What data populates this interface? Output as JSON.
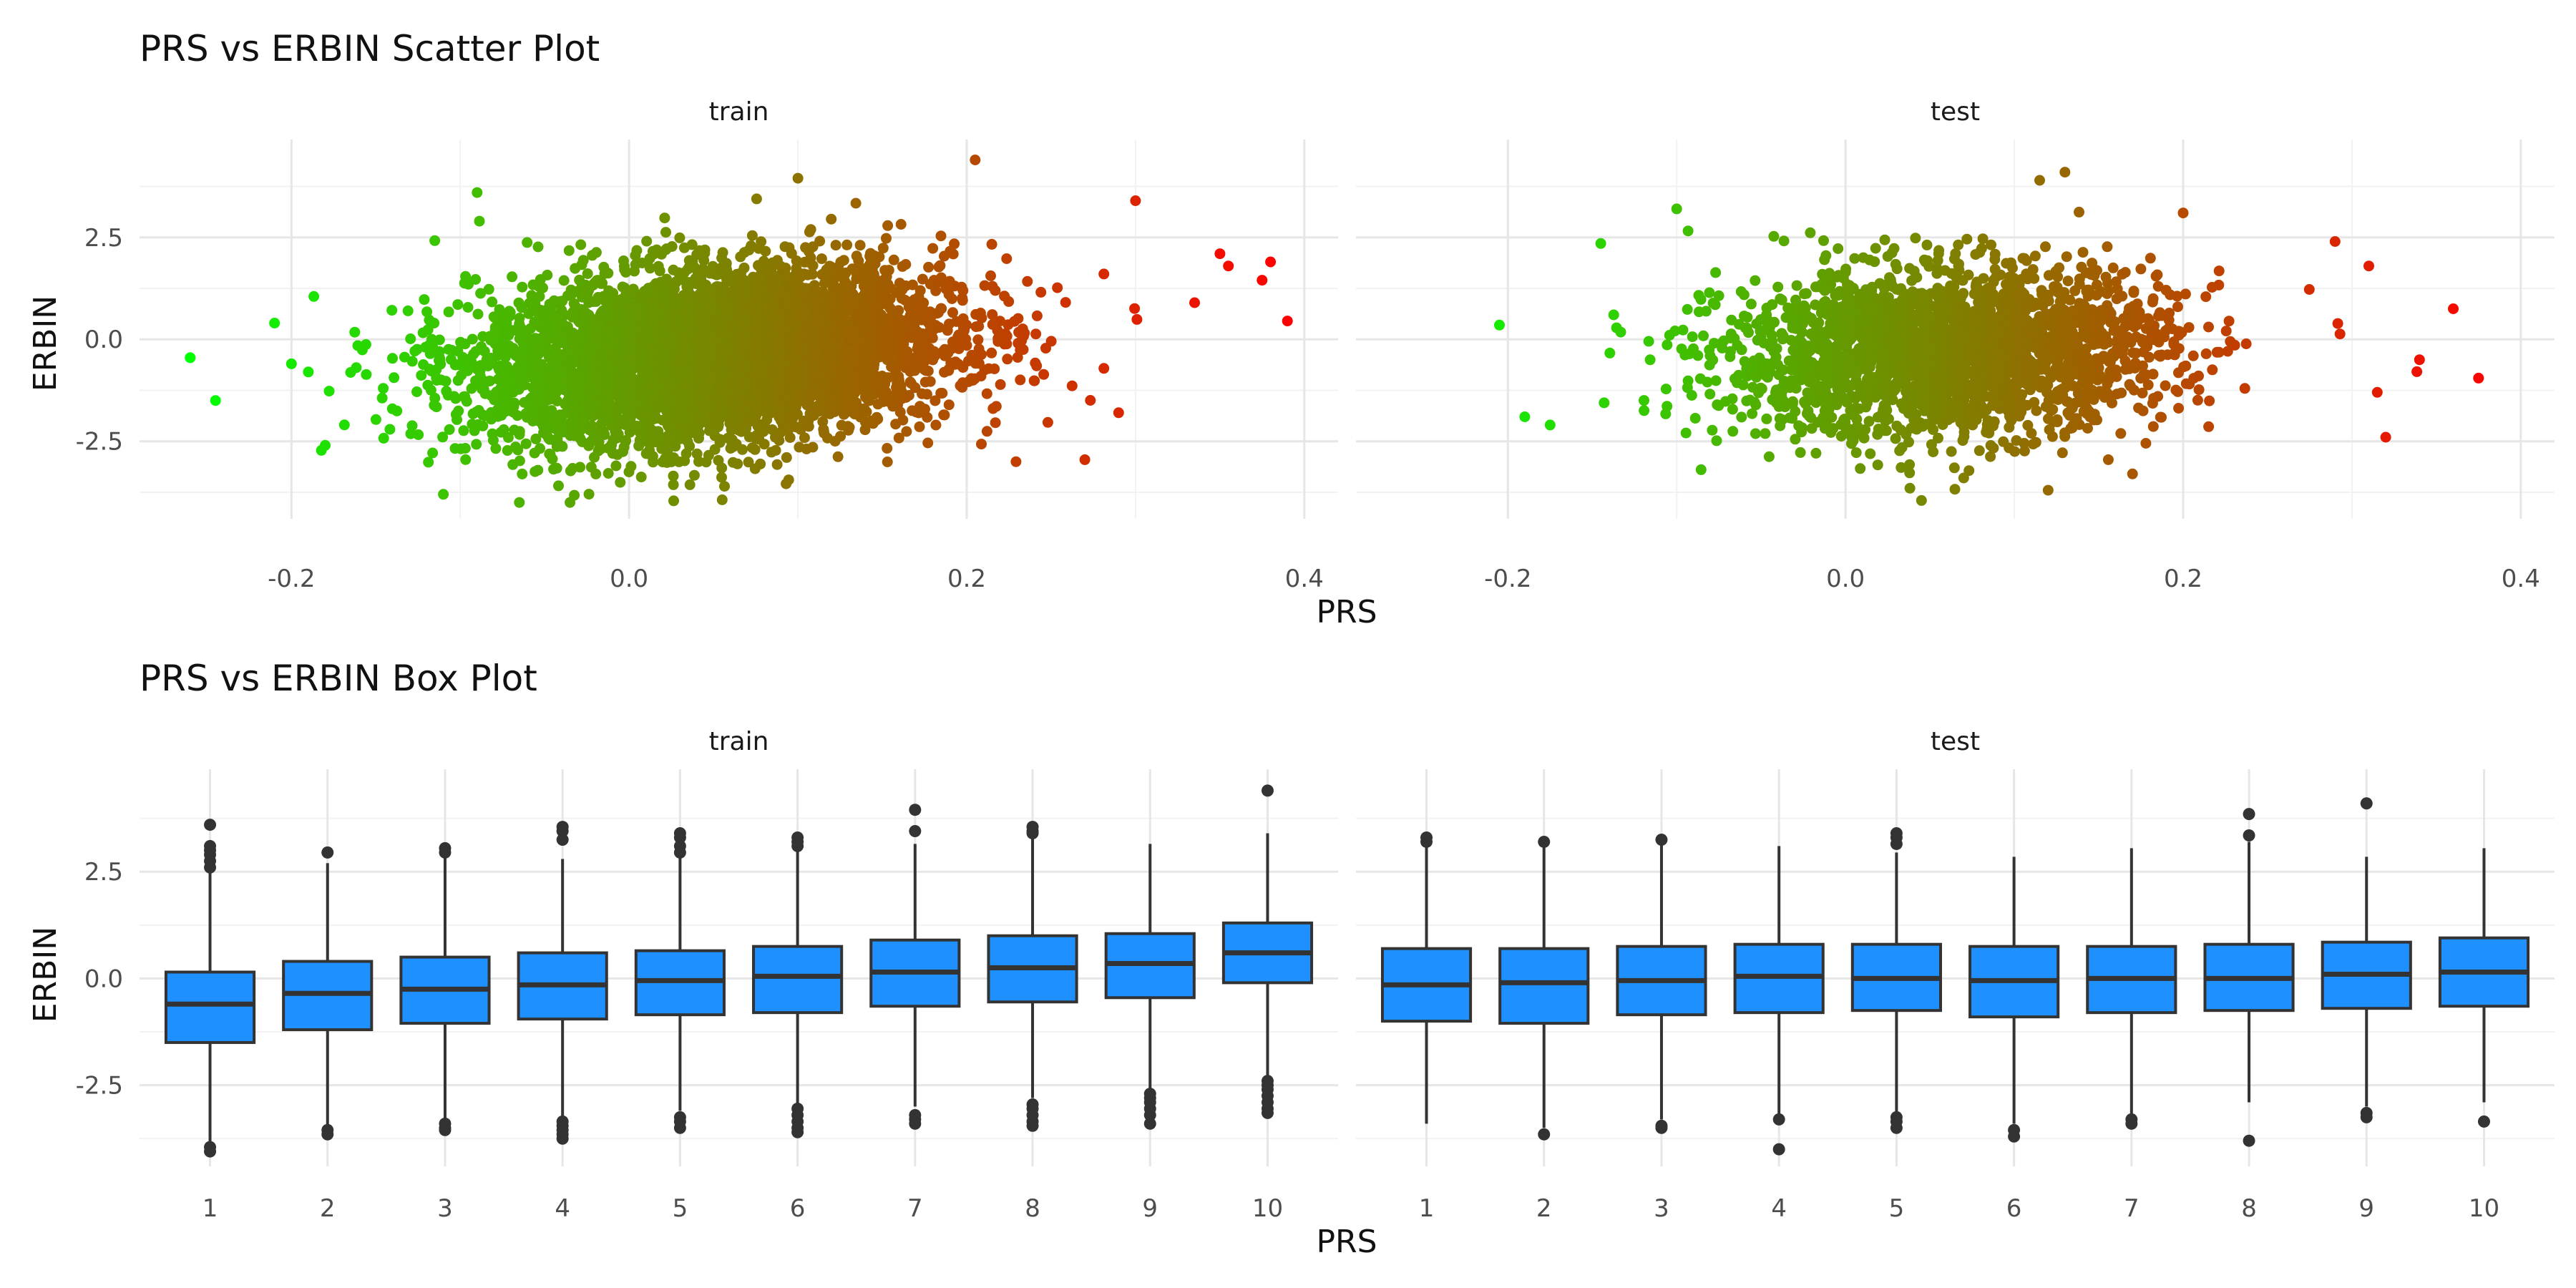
{
  "chart_data": [
    {
      "type": "scatter",
      "title": "PRS vs ERBIN Scatter Plot",
      "xlabel": "PRS",
      "ylabel": "ERBIN",
      "facets": [
        "train",
        "test"
      ],
      "xlim": [
        -0.29,
        0.42
      ],
      "ylim": [
        -4.4,
        4.9
      ],
      "x_ticks": [
        -0.2,
        0.0,
        0.2,
        0.4
      ],
      "x_tick_labels": [
        "-0.2",
        "0.0",
        "0.2",
        "0.4"
      ],
      "y_ticks": [
        -2.5,
        0.0,
        2.5
      ],
      "y_tick_labels": [
        "-2.5",
        "0.0",
        "2.5"
      ],
      "color_gradient": [
        "#00ff00",
        "#ff0000"
      ],
      "grid": true,
      "cloud": {
        "train": {
          "x_mean": 0.05,
          "x_sd": 0.07,
          "y_mean": -0.4,
          "y_sd": 1.05,
          "slope": 3.2,
          "n": 5000
        },
        "test": {
          "x_mean": 0.06,
          "x_sd": 0.065,
          "y_mean": -0.3,
          "y_sd": 1.0,
          "slope": 1.5,
          "n": 2500
        }
      },
      "outliers": {
        "train": [
          [
            -0.26,
            -0.45
          ],
          [
            -0.245,
            -1.5
          ],
          [
            -0.21,
            0.4
          ],
          [
            -0.2,
            -0.6
          ],
          [
            -0.19,
            -0.8
          ],
          [
            -0.18,
            -2.6
          ],
          [
            -0.09,
            3.6
          ],
          [
            0.1,
            3.95
          ],
          [
            0.205,
            4.4
          ],
          [
            0.38,
            1.9
          ],
          [
            0.39,
            0.45
          ],
          [
            0.375,
            1.45
          ],
          [
            0.355,
            1.8
          ],
          [
            0.35,
            2.1
          ],
          [
            0.29,
            -1.8
          ],
          [
            0.27,
            -2.95
          ],
          [
            0.335,
            0.9
          ],
          [
            0.3,
            3.4
          ],
          [
            -0.065,
            -4.0
          ],
          [
            -0.035,
            -4.0
          ],
          [
            -0.11,
            -3.8
          ]
        ],
        "test": [
          [
            -0.205,
            0.35
          ],
          [
            -0.19,
            -1.9
          ],
          [
            -0.175,
            -2.1
          ],
          [
            -0.145,
            2.35
          ],
          [
            -0.1,
            3.2
          ],
          [
            0.115,
            3.9
          ],
          [
            0.13,
            4.1
          ],
          [
            0.375,
            -0.95
          ],
          [
            0.36,
            0.75
          ],
          [
            0.34,
            -0.5
          ],
          [
            0.315,
            -1.3
          ],
          [
            0.31,
            1.8
          ],
          [
            0.32,
            -2.4
          ],
          [
            0.29,
            2.4
          ],
          [
            0.2,
            3.1
          ],
          [
            0.045,
            -3.95
          ],
          [
            0.17,
            -3.3
          ],
          [
            0.12,
            -3.7
          ],
          [
            0.07,
            -3.4
          ]
        ]
      }
    },
    {
      "type": "box",
      "title": "PRS vs ERBIN Box Plot",
      "xlabel": "PRS",
      "ylabel": "ERBIN",
      "facets": [
        "train",
        "test"
      ],
      "categories": [
        "1",
        "2",
        "3",
        "4",
        "5",
        "6",
        "7",
        "8",
        "9",
        "10"
      ],
      "ylim": [
        -4.4,
        4.9
      ],
      "y_ticks": [
        -2.5,
        0.0,
        2.5
      ],
      "y_tick_labels": [
        "-2.5",
        "0.0",
        "2.5"
      ],
      "fill_color": "#1e90ff",
      "grid": true,
      "series": [
        {
          "facet": "train",
          "boxes": [
            {
              "q1": -1.5,
              "median": -0.6,
              "q3": 0.15,
              "whisker_low": -3.85,
              "whisker_high": 2.5,
              "outliers": [
                3.6,
                3.1,
                3.0,
                2.9,
                2.75,
                2.6,
                -3.95,
                -4.05
              ]
            },
            {
              "q1": -1.2,
              "median": -0.35,
              "q3": 0.4,
              "whisker_low": -3.45,
              "whisker_high": 2.7,
              "outliers": [
                2.95,
                -3.55,
                -3.65
              ]
            },
            {
              "q1": -1.05,
              "median": -0.25,
              "q3": 0.5,
              "whisker_low": -3.3,
              "whisker_high": 2.85,
              "outliers": [
                3.05,
                2.95,
                -3.4,
                -3.5,
                -3.55
              ]
            },
            {
              "q1": -0.95,
              "median": -0.15,
              "q3": 0.6,
              "whisker_low": -3.25,
              "whisker_high": 2.8,
              "outliers": [
                3.55,
                3.45,
                3.25,
                -3.35,
                -3.45,
                -3.55,
                -3.65,
                -3.75
              ]
            },
            {
              "q1": -0.85,
              "median": -0.05,
              "q3": 0.65,
              "whisker_low": -3.1,
              "whisker_high": 2.85,
              "outliers": [
                3.4,
                3.3,
                3.1,
                2.95,
                -3.25,
                -3.35,
                -3.5
              ]
            },
            {
              "q1": -0.8,
              "median": 0.05,
              "q3": 0.75,
              "whisker_low": -2.95,
              "whisker_high": 3.0,
              "outliers": [
                3.3,
                3.2,
                3.1,
                -3.05,
                -3.2,
                -3.35,
                -3.5,
                -3.6
              ]
            },
            {
              "q1": -0.65,
              "median": 0.15,
              "q3": 0.9,
              "whisker_low": -3.0,
              "whisker_high": 3.15,
              "outliers": [
                3.95,
                3.45,
                -3.2,
                -3.3,
                -3.4
              ]
            },
            {
              "q1": -0.55,
              "median": 0.25,
              "q3": 1.0,
              "whisker_low": -2.8,
              "whisker_high": 3.3,
              "outliers": [
                3.55,
                3.45,
                3.4,
                -2.95,
                -3.05,
                -3.2,
                -3.35,
                -3.45
              ]
            },
            {
              "q1": -0.45,
              "median": 0.35,
              "q3": 1.05,
              "whisker_low": -2.6,
              "whisker_high": 3.15,
              "outliers": [
                -2.7,
                -2.8,
                -2.9,
                -3.05,
                -3.2,
                -3.4
              ]
            },
            {
              "q1": -0.1,
              "median": 0.6,
              "q3": 1.3,
              "whisker_low": -2.3,
              "whisker_high": 3.4,
              "outliers": [
                4.4,
                -2.4,
                -2.5,
                -2.6,
                -2.75,
                -2.9,
                -3.05,
                -3.15
              ]
            }
          ]
        },
        {
          "facet": "test",
          "boxes": [
            {
              "q1": -1.0,
              "median": -0.15,
              "q3": 0.7,
              "whisker_low": -3.4,
              "whisker_high": 3.15,
              "outliers": [
                3.3,
                3.2
              ]
            },
            {
              "q1": -1.05,
              "median": -0.1,
              "q3": 0.7,
              "whisker_low": -3.5,
              "whisker_high": 3.15,
              "outliers": [
                3.2,
                -3.65
              ]
            },
            {
              "q1": -0.85,
              "median": -0.05,
              "q3": 0.75,
              "whisker_low": -3.3,
              "whisker_high": 3.15,
              "outliers": [
                3.25,
                -3.45,
                -3.5
              ]
            },
            {
              "q1": -0.8,
              "median": 0.05,
              "q3": 0.8,
              "whisker_low": -3.2,
              "whisker_high": 3.1,
              "outliers": [
                -3.3,
                -4.0
              ]
            },
            {
              "q1": -0.75,
              "median": 0.0,
              "q3": 0.8,
              "whisker_low": -3.15,
              "whisker_high": 2.95,
              "outliers": [
                3.4,
                3.3,
                3.15,
                -3.25,
                -3.35,
                -3.5
              ]
            },
            {
              "q1": -0.9,
              "median": -0.05,
              "q3": 0.75,
              "whisker_low": -3.4,
              "whisker_high": 2.85,
              "outliers": [
                -3.55,
                -3.7
              ]
            },
            {
              "q1": -0.8,
              "median": 0.0,
              "q3": 0.75,
              "whisker_low": -3.2,
              "whisker_high": 3.05,
              "outliers": [
                -3.3,
                -3.4
              ]
            },
            {
              "q1": -0.75,
              "median": 0.0,
              "q3": 0.8,
              "whisker_low": -2.9,
              "whisker_high": 3.2,
              "outliers": [
                3.85,
                3.35,
                -3.8
              ]
            },
            {
              "q1": -0.7,
              "median": 0.1,
              "q3": 0.85,
              "whisker_low": -3.0,
              "whisker_high": 2.85,
              "outliers": [
                4.1,
                -3.15,
                -3.25
              ]
            },
            {
              "q1": -0.65,
              "median": 0.15,
              "q3": 0.95,
              "whisker_low": -2.9,
              "whisker_high": 3.05,
              "outliers": [
                -3.35
              ]
            }
          ]
        }
      ]
    }
  ]
}
